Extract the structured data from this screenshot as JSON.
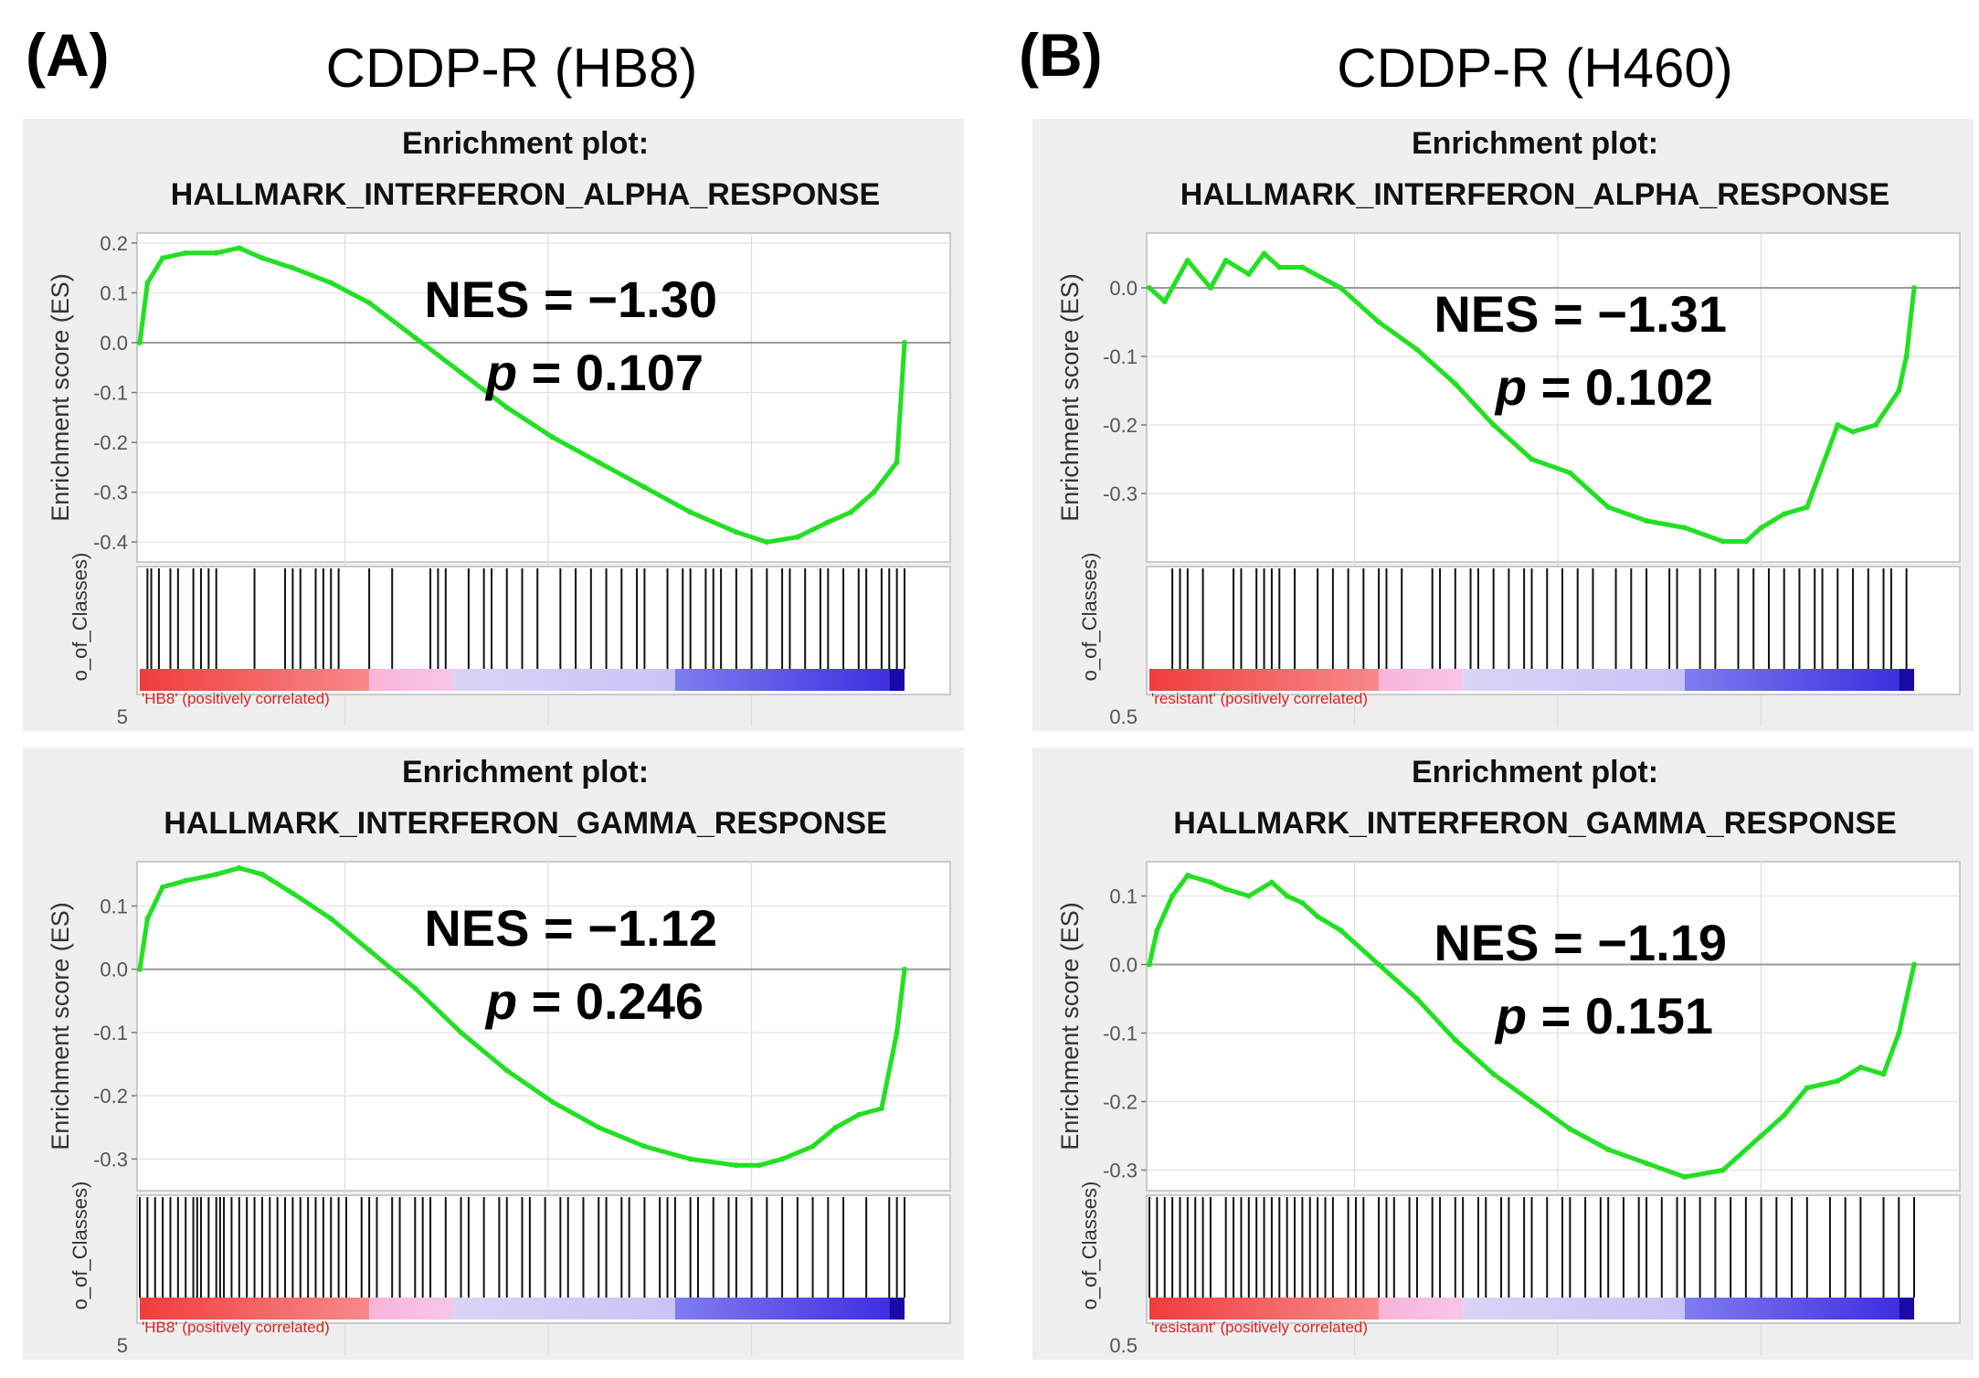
{
  "panels": [
    {
      "letter": "(A)",
      "title": "CDDP-R (HB8)"
    },
    {
      "letter": "(B)",
      "title": "CDDP-R (H460)"
    }
  ],
  "chart_data": [
    {
      "type": "line",
      "title_line1": "Enrichment plot:",
      "title_line2": "HALLMARK_INTERFERON_ALPHA_RESPONSE",
      "ylabel": "Enrichment score (ES)",
      "ylabel2": "o_of_Classes)",
      "ylim": [
        -0.44,
        0.22
      ],
      "yticks": [
        0.2,
        0.1,
        0.0,
        -0.1,
        -0.2,
        -0.3,
        -0.4
      ],
      "ytick_labels": [
        "0.2",
        "0.1",
        "0.0",
        "-0.1",
        "-0.2",
        "-0.3",
        "-0.4"
      ],
      "bottom_tick": "5",
      "class_label": "'HB8' (positively correlated)",
      "nes_label": "NES = −1.30",
      "p_prefix": "p",
      "p_value": " = 0.107",
      "series": [
        {
          "name": "ES",
          "x": [
            0,
            0.01,
            0.03,
            0.06,
            0.1,
            0.13,
            0.16,
            0.2,
            0.25,
            0.3,
            0.36,
            0.42,
            0.48,
            0.54,
            0.6,
            0.66,
            0.72,
            0.78,
            0.82,
            0.86,
            0.9,
            0.93,
            0.96,
            0.99,
            1.0
          ],
          "y": [
            0.0,
            0.12,
            0.17,
            0.18,
            0.18,
            0.19,
            0.17,
            0.15,
            0.12,
            0.08,
            0.01,
            -0.06,
            -0.13,
            -0.19,
            -0.24,
            -0.29,
            -0.34,
            -0.38,
            -0.4,
            -0.39,
            -0.36,
            -0.34,
            -0.3,
            -0.24,
            0.0
          ]
        }
      ],
      "hits": [
        0.01,
        0.015,
        0.025,
        0.04,
        0.05,
        0.07,
        0.08,
        0.09,
        0.1,
        0.15,
        0.19,
        0.2,
        0.21,
        0.23,
        0.24,
        0.25,
        0.26,
        0.3,
        0.33,
        0.38,
        0.39,
        0.4,
        0.43,
        0.45,
        0.46,
        0.48,
        0.5,
        0.52,
        0.55,
        0.57,
        0.59,
        0.61,
        0.63,
        0.65,
        0.66,
        0.69,
        0.71,
        0.72,
        0.74,
        0.75,
        0.76,
        0.78,
        0.8,
        0.82,
        0.84,
        0.85,
        0.87,
        0.89,
        0.9,
        0.92,
        0.94,
        0.95,
        0.97,
        0.98,
        0.99,
        1.0
      ]
    },
    {
      "type": "line",
      "title_line1": "Enrichment plot:",
      "title_line2": "HALLMARK_INTERFERON_ALPHA_RESPONSE",
      "ylabel": "Enrichment score (ES)",
      "ylabel2": "o_of_Classes)",
      "ylim": [
        -0.4,
        0.08
      ],
      "yticks": [
        0.0,
        -0.1,
        -0.2,
        -0.3
      ],
      "ytick_labels": [
        "0.0",
        "-0.1",
        "-0.2",
        "-0.3"
      ],
      "bottom_tick": "0.5",
      "class_label": "'resistant' (positively correlated)",
      "nes_label": "NES = −1.31",
      "p_prefix": "p",
      "p_value": " = 0.102",
      "series": [
        {
          "name": "ES",
          "x": [
            0,
            0.02,
            0.05,
            0.08,
            0.1,
            0.13,
            0.15,
            0.17,
            0.2,
            0.25,
            0.3,
            0.35,
            0.4,
            0.45,
            0.5,
            0.55,
            0.6,
            0.65,
            0.7,
            0.75,
            0.78,
            0.8,
            0.83,
            0.86,
            0.9,
            0.92,
            0.95,
            0.98,
            0.99,
            1.0
          ],
          "y": [
            0.0,
            -0.02,
            0.04,
            0.0,
            0.04,
            0.02,
            0.05,
            0.03,
            0.03,
            0.0,
            -0.05,
            -0.09,
            -0.14,
            -0.2,
            -0.25,
            -0.27,
            -0.32,
            -0.34,
            -0.35,
            -0.37,
            -0.37,
            -0.35,
            -0.33,
            -0.32,
            -0.2,
            -0.21,
            -0.2,
            -0.15,
            -0.1,
            0.0
          ]
        }
      ],
      "hits": [
        0.03,
        0.04,
        0.05,
        0.07,
        0.11,
        0.12,
        0.14,
        0.15,
        0.16,
        0.17,
        0.19,
        0.22,
        0.24,
        0.26,
        0.28,
        0.3,
        0.31,
        0.33,
        0.37,
        0.38,
        0.4,
        0.42,
        0.43,
        0.45,
        0.47,
        0.49,
        0.5,
        0.52,
        0.54,
        0.56,
        0.58,
        0.61,
        0.63,
        0.65,
        0.68,
        0.69,
        0.72,
        0.74,
        0.77,
        0.79,
        0.81,
        0.83,
        0.85,
        0.87,
        0.88,
        0.9,
        0.92,
        0.94,
        0.96,
        0.97,
        0.99
      ]
    },
    {
      "type": "line",
      "title_line1": "Enrichment plot:",
      "title_line2": "HALLMARK_INTERFERON_GAMMA_RESPONSE",
      "ylabel": "Enrichment score (ES)",
      "ylabel2": "o_of_Classes)",
      "ylim": [
        -0.35,
        0.17
      ],
      "yticks": [
        0.1,
        0.0,
        -0.1,
        -0.2,
        -0.3
      ],
      "ytick_labels": [
        "0.1",
        "0.0",
        "-0.1",
        "-0.2",
        "-0.3"
      ],
      "bottom_tick": "5",
      "class_label": "'HB8' (positively correlated)",
      "nes_label": "NES = −1.12",
      "p_prefix": "p",
      "p_value": " = 0.246",
      "series": [
        {
          "name": "ES",
          "x": [
            0,
            0.01,
            0.03,
            0.06,
            0.1,
            0.13,
            0.16,
            0.2,
            0.25,
            0.3,
            0.36,
            0.42,
            0.48,
            0.54,
            0.6,
            0.66,
            0.72,
            0.78,
            0.81,
            0.84,
            0.88,
            0.91,
            0.94,
            0.97,
            0.99,
            1.0
          ],
          "y": [
            0.0,
            0.08,
            0.13,
            0.14,
            0.15,
            0.16,
            0.15,
            0.12,
            0.08,
            0.03,
            -0.03,
            -0.1,
            -0.16,
            -0.21,
            -0.25,
            -0.28,
            -0.3,
            -0.31,
            -0.31,
            -0.3,
            -0.28,
            -0.25,
            -0.23,
            -0.22,
            -0.1,
            0.0
          ]
        }
      ],
      "hits": [
        0.0,
        0.01,
        0.02,
        0.03,
        0.04,
        0.05,
        0.06,
        0.07,
        0.075,
        0.08,
        0.09,
        0.1,
        0.105,
        0.11,
        0.12,
        0.13,
        0.14,
        0.15,
        0.16,
        0.17,
        0.18,
        0.19,
        0.2,
        0.21,
        0.22,
        0.23,
        0.24,
        0.25,
        0.26,
        0.27,
        0.29,
        0.3,
        0.31,
        0.33,
        0.34,
        0.36,
        0.37,
        0.38,
        0.4,
        0.42,
        0.43,
        0.45,
        0.47,
        0.48,
        0.5,
        0.51,
        0.53,
        0.55,
        0.56,
        0.58,
        0.6,
        0.61,
        0.63,
        0.64,
        0.66,
        0.68,
        0.69,
        0.7,
        0.72,
        0.73,
        0.75,
        0.77,
        0.78,
        0.8,
        0.82,
        0.84,
        0.86,
        0.88,
        0.9,
        0.92,
        0.95,
        0.98,
        0.99,
        1.0
      ]
    },
    {
      "type": "line",
      "title_line1": "Enrichment plot:",
      "title_line2": "HALLMARK_INTERFERON_GAMMA_RESPONSE",
      "ylabel": "Enrichment score (ES)",
      "ylabel2": "o_of_Classes)",
      "ylim": [
        -0.33,
        0.15
      ],
      "yticks": [
        0.1,
        0.0,
        -0.1,
        -0.2,
        -0.3
      ],
      "ytick_labels": [
        "0.1",
        "0.0",
        "-0.1",
        "-0.2",
        "-0.3"
      ],
      "bottom_tick": "0.5",
      "class_label": "'resistant' (positively correlated)",
      "nes_label": "NES = −1.19",
      "p_prefix": "p",
      "p_value": " = 0.151",
      "series": [
        {
          "name": "ES",
          "x": [
            0,
            0.01,
            0.03,
            0.05,
            0.08,
            0.1,
            0.13,
            0.16,
            0.18,
            0.2,
            0.22,
            0.25,
            0.3,
            0.35,
            0.4,
            0.45,
            0.5,
            0.55,
            0.6,
            0.65,
            0.7,
            0.75,
            0.8,
            0.83,
            0.86,
            0.9,
            0.93,
            0.96,
            0.98,
            0.99,
            1.0
          ],
          "y": [
            0.0,
            0.05,
            0.1,
            0.13,
            0.12,
            0.11,
            0.1,
            0.12,
            0.1,
            0.09,
            0.07,
            0.05,
            0.0,
            -0.05,
            -0.11,
            -0.16,
            -0.2,
            -0.24,
            -0.27,
            -0.29,
            -0.31,
            -0.3,
            -0.25,
            -0.22,
            -0.18,
            -0.17,
            -0.15,
            -0.16,
            -0.1,
            -0.05,
            0.0
          ]
        }
      ],
      "hits": [
        0.0,
        0.01,
        0.02,
        0.03,
        0.04,
        0.05,
        0.06,
        0.07,
        0.08,
        0.1,
        0.11,
        0.12,
        0.13,
        0.14,
        0.15,
        0.16,
        0.17,
        0.18,
        0.19,
        0.2,
        0.21,
        0.22,
        0.23,
        0.24,
        0.26,
        0.27,
        0.28,
        0.3,
        0.31,
        0.32,
        0.34,
        0.35,
        0.37,
        0.38,
        0.4,
        0.41,
        0.43,
        0.44,
        0.46,
        0.47,
        0.49,
        0.5,
        0.52,
        0.54,
        0.55,
        0.57,
        0.59,
        0.6,
        0.62,
        0.64,
        0.65,
        0.67,
        0.69,
        0.7,
        0.72,
        0.74,
        0.76,
        0.78,
        0.8,
        0.82,
        0.84,
        0.86,
        0.89,
        0.91,
        0.93,
        0.96,
        0.98,
        1.0
      ]
    }
  ]
}
